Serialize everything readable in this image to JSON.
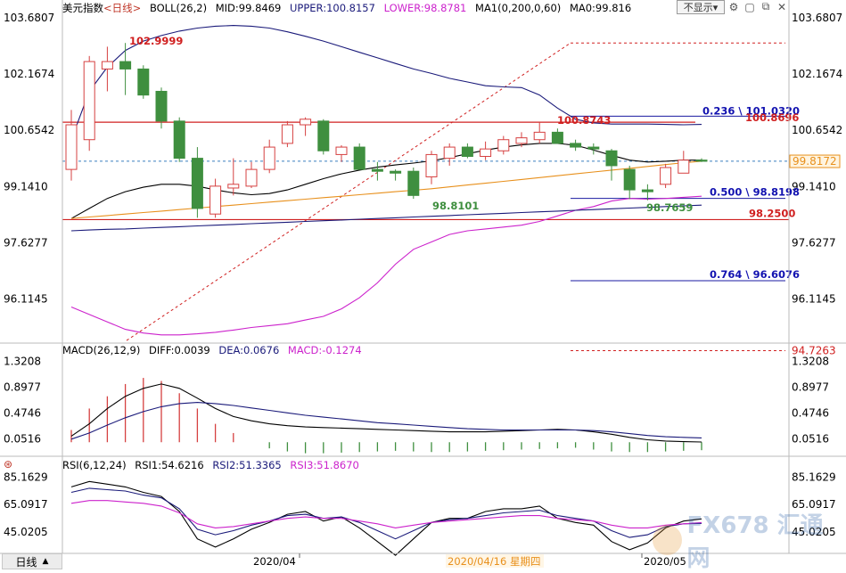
{
  "header": {
    "instrument": "美元指数",
    "period": "<日线>",
    "boll_label": "BOLL(26,2)",
    "mid": "MID:99.8469",
    "upper": "UPPER:100.8157",
    "lower": "LOWER:98.8781",
    "ma1": "MA1(0,200,0,60)",
    "ma0": "MA0:99.816",
    "hide_label": "不显示"
  },
  "macd_header": {
    "label": "MACD(26,12,9)",
    "diff": "DIFF:0.0039",
    "dea": "DEA:0.0676",
    "macd": "MACD:-0.1274"
  },
  "rsi_header": {
    "label": "RSI(6,12,24)",
    "rsi1": "RSI1:54.6216",
    "rsi2": "RSI2:51.3365",
    "rsi3": "RSI3:51.8670"
  },
  "footer": {
    "period_tab": "日线",
    "dates": [
      "2020/04",
      "2020/04/16 星期四",
      "2020/05"
    ]
  },
  "watermark": {
    "text": "FX678 汇通网"
  },
  "colors": {
    "up": "#d64040",
    "down": "#3f8f3f",
    "mid": "#000000",
    "upper": "#1a1a7a",
    "lower": "#cc22cc",
    "ma": "#e8901c",
    "fib_line": "#d02020",
    "fib_text": "#1212b0"
  },
  "chart_data": [
    {
      "type": "candlestick",
      "title": "美元指数 <日线>",
      "y_ticks": [
        "103.6807",
        "102.1674",
        "100.6542",
        "99.1410",
        "97.6277",
        "96.1145"
      ],
      "ylim": [
        94.93,
        103.82
      ],
      "x_labels": [
        "2020/04",
        "2020/05"
      ],
      "candles": [
        {
          "o": 99.6,
          "h": 101.2,
          "l": 99.3,
          "c": 100.8
        },
        {
          "o": 100.4,
          "h": 102.65,
          "l": 100.1,
          "c": 102.5
        },
        {
          "o": 102.3,
          "h": 102.9,
          "l": 101.7,
          "c": 102.5
        },
        {
          "o": 102.5,
          "h": 103.0,
          "l": 101.6,
          "c": 102.3
        },
        {
          "o": 102.3,
          "h": 102.4,
          "l": 101.5,
          "c": 101.6
        },
        {
          "o": 101.7,
          "h": 101.8,
          "l": 100.7,
          "c": 100.9
        },
        {
          "o": 100.9,
          "h": 101.0,
          "l": 99.8,
          "c": 99.9
        },
        {
          "o": 99.9,
          "h": 100.2,
          "l": 98.3,
          "c": 98.55
        },
        {
          "o": 98.4,
          "h": 99.35,
          "l": 98.3,
          "c": 99.15
        },
        {
          "o": 99.1,
          "h": 99.9,
          "l": 98.9,
          "c": 99.2
        },
        {
          "o": 99.15,
          "h": 99.8,
          "l": 99.1,
          "c": 99.6
        },
        {
          "o": 99.6,
          "h": 100.4,
          "l": 99.5,
          "c": 100.2
        },
        {
          "o": 100.3,
          "h": 100.9,
          "l": 100.2,
          "c": 100.8
        },
        {
          "o": 100.8,
          "h": 101.0,
          "l": 100.5,
          "c": 100.95
        },
        {
          "o": 100.9,
          "h": 100.95,
          "l": 100.0,
          "c": 100.1
        },
        {
          "o": 100.0,
          "h": 100.25,
          "l": 99.8,
          "c": 100.2
        },
        {
          "o": 100.2,
          "h": 100.3,
          "l": 99.6,
          "c": 99.6
        },
        {
          "o": 99.6,
          "h": 99.8,
          "l": 99.3,
          "c": 99.55
        },
        {
          "o": 99.55,
          "h": 99.6,
          "l": 99.3,
          "c": 99.5
        },
        {
          "o": 99.55,
          "h": 99.65,
          "l": 98.81,
          "c": 98.9
        },
        {
          "o": 99.4,
          "h": 100.1,
          "l": 99.2,
          "c": 100.0
        },
        {
          "o": 99.9,
          "h": 100.3,
          "l": 99.7,
          "c": 100.2
        },
        {
          "o": 100.2,
          "h": 100.3,
          "l": 99.9,
          "c": 99.95
        },
        {
          "o": 99.95,
          "h": 100.35,
          "l": 99.85,
          "c": 100.15
        },
        {
          "o": 100.1,
          "h": 100.5,
          "l": 100.0,
          "c": 100.4
        },
        {
          "o": 100.3,
          "h": 100.6,
          "l": 100.2,
          "c": 100.45
        },
        {
          "o": 100.4,
          "h": 100.87,
          "l": 100.3,
          "c": 100.6
        },
        {
          "o": 100.6,
          "h": 100.7,
          "l": 100.3,
          "c": 100.3
        },
        {
          "o": 100.3,
          "h": 100.4,
          "l": 100.1,
          "c": 100.2
        },
        {
          "o": 100.2,
          "h": 100.3,
          "l": 100.0,
          "c": 100.15
        },
        {
          "o": 100.1,
          "h": 100.15,
          "l": 99.3,
          "c": 99.7
        },
        {
          "o": 99.6,
          "h": 99.7,
          "l": 98.8,
          "c": 99.05
        },
        {
          "o": 99.05,
          "h": 99.2,
          "l": 98.77,
          "c": 99.0
        },
        {
          "o": 99.2,
          "h": 99.75,
          "l": 99.1,
          "c": 99.65
        },
        {
          "o": 99.5,
          "h": 100.1,
          "l": 99.5,
          "c": 99.85
        },
        {
          "o": 99.85,
          "h": 99.9,
          "l": 99.8,
          "c": 99.82
        }
      ],
      "series": [
        {
          "name": "MID",
          "values": [
            98.28,
            98.55,
            98.82,
            99.0,
            99.12,
            99.2,
            99.2,
            99.15,
            99.05,
            98.97,
            98.92,
            98.95,
            99.05,
            99.2,
            99.35,
            99.48,
            99.58,
            99.66,
            99.72,
            99.77,
            99.83,
            99.92,
            100.02,
            100.12,
            100.2,
            100.26,
            100.3,
            100.3,
            100.25,
            100.12,
            99.98,
            99.85,
            99.8,
            99.82,
            99.85,
            99.85
          ]
        },
        {
          "name": "UPPER",
          "values": [
            100.4,
            101.7,
            102.35,
            102.8,
            103.05,
            103.2,
            103.32,
            103.4,
            103.45,
            103.47,
            103.45,
            103.4,
            103.3,
            103.18,
            103.05,
            102.9,
            102.75,
            102.6,
            102.45,
            102.3,
            102.18,
            102.05,
            101.95,
            101.85,
            101.82,
            101.8,
            101.6,
            101.25,
            100.95,
            100.85,
            100.82,
            100.82,
            100.82,
            100.81,
            100.8,
            100.81
          ]
        },
        {
          "name": "LOWER",
          "values": [
            95.9,
            95.7,
            95.5,
            95.3,
            95.2,
            95.15,
            95.15,
            95.18,
            95.22,
            95.28,
            95.35,
            95.4,
            95.45,
            95.55,
            95.65,
            95.85,
            96.15,
            96.55,
            97.05,
            97.45,
            97.65,
            97.85,
            97.95,
            98.0,
            98.05,
            98.1,
            98.2,
            98.35,
            98.5,
            98.6,
            98.75,
            98.82,
            98.8,
            98.82,
            98.85,
            98.88
          ]
        },
        {
          "name": "MA1",
          "values": [
            98.28,
            98.32,
            98.36,
            98.4,
            98.44,
            98.48,
            98.52,
            98.56,
            98.6,
            98.64,
            98.68,
            98.72,
            98.76,
            98.8,
            98.84,
            98.88,
            98.92,
            98.96,
            99.0,
            99.04,
            99.08,
            99.13,
            99.18,
            99.23,
            99.28,
            99.33,
            99.38,
            99.43,
            99.48,
            99.53,
            99.58,
            99.63,
            99.68,
            99.73,
            99.78,
            99.82
          ]
        },
        {
          "name": "MA0",
          "values": [
            97.95,
            97.97,
            97.99,
            98.0,
            98.02,
            98.04,
            98.06,
            98.08,
            98.1,
            98.12,
            98.14,
            98.16,
            98.18,
            98.2,
            98.22,
            98.24,
            98.26,
            98.28,
            98.3,
            98.32,
            98.34,
            98.36,
            98.38,
            98.4,
            98.42,
            98.44,
            98.46,
            98.48,
            98.5,
            98.52,
            98.54,
            98.56,
            98.58,
            98.6,
            98.62,
            98.64
          ]
        }
      ],
      "annotations": [
        {
          "text": "102.9999",
          "value": 102.9999
        },
        {
          "text": "98.8101",
          "value": 98.8101
        },
        {
          "text": "100.8743",
          "value": 100.8743
        },
        {
          "text": "98.7659",
          "value": 98.7659
        },
        {
          "text": "0.236 \\ 101.0320",
          "value": 101.032
        },
        {
          "text": "100.8696",
          "value": 100.8696
        },
        {
          "text": "0.500 \\ 98.8198",
          "value": 98.8198
        },
        {
          "text": "98.2500",
          "value": 98.25
        },
        {
          "text": "0.764 \\ 96.6076",
          "value": 96.6076
        },
        {
          "text": "99.8172",
          "value": 99.8172
        },
        {
          "text": "94.7263",
          "value": 94.7263
        }
      ]
    },
    {
      "type": "bar",
      "title": "MACD(26,12,9)",
      "y_ticks": [
        "1.3208",
        "0.8977",
        "0.4746",
        "0.0516"
      ],
      "ylim": [
        -0.2,
        1.4
      ],
      "series": [
        {
          "name": "MACD",
          "values": [
            0.2,
            0.55,
            0.75,
            0.95,
            1.05,
            1.0,
            0.8,
            0.55,
            0.3,
            0.15,
            0.0,
            -0.1,
            -0.15,
            -0.18,
            -0.18,
            -0.17,
            -0.16,
            -0.15,
            -0.14,
            -0.15,
            -0.16,
            -0.16,
            -0.15,
            -0.14,
            -0.13,
            -0.12,
            -0.11,
            -0.1,
            -0.09,
            -0.12,
            -0.15,
            -0.16,
            -0.16,
            -0.15,
            -0.14,
            -0.13
          ]
        },
        {
          "name": "DIFF",
          "values": [
            0.1,
            0.3,
            0.55,
            0.75,
            0.88,
            0.95,
            0.88,
            0.72,
            0.55,
            0.42,
            0.35,
            0.3,
            0.27,
            0.25,
            0.24,
            0.23,
            0.22,
            0.21,
            0.2,
            0.19,
            0.18,
            0.17,
            0.17,
            0.17,
            0.18,
            0.19,
            0.2,
            0.21,
            0.2,
            0.17,
            0.13,
            0.08,
            0.04,
            0.02,
            0.01,
            0.004
          ]
        },
        {
          "name": "DEA",
          "values": [
            0.05,
            0.15,
            0.28,
            0.4,
            0.5,
            0.58,
            0.63,
            0.65,
            0.63,
            0.6,
            0.56,
            0.52,
            0.48,
            0.44,
            0.41,
            0.38,
            0.35,
            0.32,
            0.3,
            0.28,
            0.26,
            0.24,
            0.22,
            0.21,
            0.2,
            0.2,
            0.2,
            0.2,
            0.2,
            0.19,
            0.17,
            0.14,
            0.11,
            0.09,
            0.08,
            0.07
          ]
        }
      ]
    },
    {
      "type": "line",
      "title": "RSI(6,12,24)",
      "y_ticks": [
        "85.1629",
        "65.0917",
        "45.0205"
      ],
      "ylim": [
        30,
        90
      ],
      "series": [
        {
          "name": "RSI1",
          "values": [
            78,
            82,
            80,
            78,
            74,
            71,
            60,
            40,
            34,
            40,
            47,
            52,
            58,
            60,
            53,
            56,
            48,
            38,
            28,
            40,
            52,
            55,
            55,
            60,
            62,
            62,
            64,
            55,
            52,
            50,
            38,
            32,
            37,
            48,
            53,
            54.6
          ]
        },
        {
          "name": "RSI2",
          "values": [
            74,
            77,
            76,
            75,
            72,
            70,
            62,
            47,
            43,
            46,
            50,
            53,
            57,
            58,
            55,
            56,
            52,
            46,
            40,
            46,
            52,
            54,
            55,
            57,
            59,
            60,
            61,
            57,
            55,
            53,
            46,
            41,
            43,
            49,
            51,
            51.3
          ]
        },
        {
          "name": "RSI3",
          "values": [
            66,
            68,
            68,
            67,
            66,
            64,
            59,
            51,
            48,
            49,
            51,
            53,
            55,
            56,
            55,
            55,
            53,
            51,
            48,
            50,
            52,
            53,
            54,
            55,
            56,
            57,
            57,
            55,
            54,
            53,
            50,
            48,
            48,
            50,
            51,
            51.9
          ]
        }
      ]
    }
  ]
}
